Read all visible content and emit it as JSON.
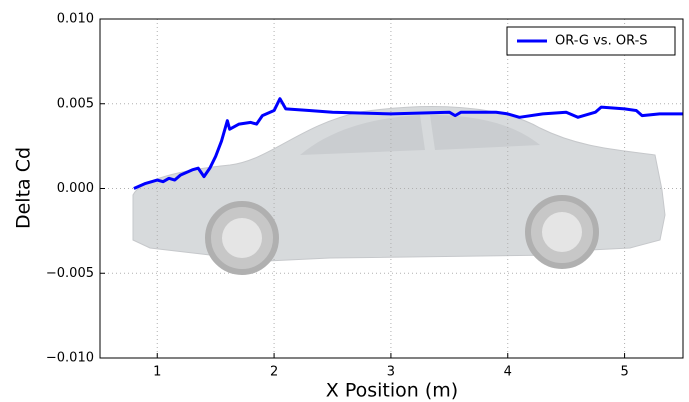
{
  "chart_data": {
    "type": "line",
    "xlabel": "X Position (m)",
    "ylabel": "Delta Cd",
    "x": [
      0.8,
      0.9,
      1.0,
      1.05,
      1.1,
      1.15,
      1.2,
      1.3,
      1.35,
      1.4,
      1.45,
      1.5,
      1.55,
      1.6,
      1.62,
      1.7,
      1.8,
      1.85,
      1.9,
      2.0,
      2.05,
      2.1,
      2.3,
      2.5,
      3.0,
      3.5,
      3.55,
      3.6,
      3.9,
      4.0,
      4.1,
      4.3,
      4.5,
      4.6,
      4.75,
      4.8,
      5.0,
      5.1,
      5.15,
      5.3,
      5.5
    ],
    "series": [
      {
        "name": "OR-G vs. OR-S",
        "color": "#0000ff",
        "values": [
          0.0,
          0.0003,
          0.0005,
          0.0004,
          0.0006,
          0.0005,
          0.0008,
          0.0011,
          0.0012,
          0.0007,
          0.0012,
          0.0019,
          0.0028,
          0.004,
          0.0035,
          0.0038,
          0.0039,
          0.0038,
          0.0043,
          0.0046,
          0.0053,
          0.0047,
          0.0046,
          0.0045,
          0.0044,
          0.0045,
          0.0043,
          0.0045,
          0.0045,
          0.0044,
          0.0042,
          0.0044,
          0.0045,
          0.0042,
          0.0045,
          0.0048,
          0.0047,
          0.0046,
          0.0043,
          0.0044,
          0.0044
        ]
      }
    ],
    "xlim": [
      0.51,
      5.5
    ],
    "xticks": [
      1,
      2,
      3,
      4,
      5
    ],
    "ylim": [
      -0.01,
      0.01
    ],
    "yticks": [
      {
        "value": -0.01,
        "label": "−0.010"
      },
      {
        "value": -0.005,
        "label": "−0.005"
      },
      {
        "value": 0,
        "label": "0.000"
      },
      {
        "value": 0.005,
        "label": "0.005"
      },
      {
        "value": 0.01,
        "label": "0.010"
      }
    ],
    "grid": true,
    "legend": "upper right"
  }
}
